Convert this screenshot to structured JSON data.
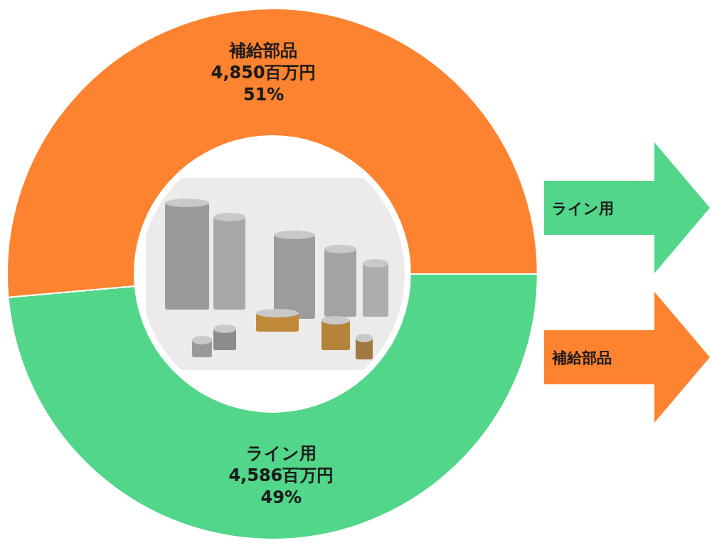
{
  "chart_data": {
    "type": "pie",
    "categories": [
      "ライン用",
      "補給部品"
    ],
    "values": [
      4586,
      4850
    ],
    "value_labels": [
      "4,586百万円",
      "4,850百万円"
    ],
    "percent_labels": [
      "49%",
      "51%"
    ],
    "colors": [
      "#52d68a",
      "#fd8330"
    ],
    "data_labels": true,
    "arrow_labels": [
      "ライン用",
      "補給部品"
    ]
  }
}
